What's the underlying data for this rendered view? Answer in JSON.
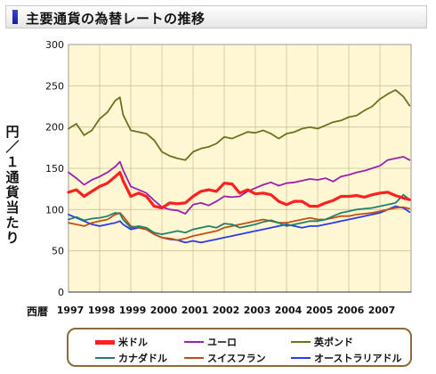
{
  "title": "主要通貨の為替レートの推移",
  "chart_data": {
    "type": "line",
    "ylabel": "円／１通貨当たり",
    "xlabel_prefix": "西暦",
    "ylim": [
      0,
      300
    ],
    "yticks": [
      "0",
      "50",
      "100",
      "150",
      "200",
      "250",
      "300"
    ],
    "xlim": [
      1997,
      2008
    ],
    "xticks": [
      "1997",
      "1998",
      "1999",
      "2000",
      "2001",
      "2002",
      "2003",
      "2004",
      "2005",
      "2006",
      "2007"
    ],
    "grid": true,
    "legend_position": "bottom",
    "series": [
      {
        "name": "米ドル",
        "color": "#ff2020",
        "width": 3.2,
        "x": [
          1997,
          1997.25,
          1997.5,
          1997.75,
          1998,
          1998.25,
          1998.5,
          1998.65,
          1998.75,
          1999,
          1999.25,
          1999.5,
          1999.75,
          2000,
          2000.25,
          2000.5,
          2000.75,
          2001,
          2001.25,
          2001.5,
          2001.75,
          2002,
          2002.25,
          2002.5,
          2002.75,
          2003,
          2003.25,
          2003.5,
          2003.75,
          2004,
          2004.25,
          2004.5,
          2004.75,
          2005,
          2005.25,
          2005.5,
          2005.75,
          2006,
          2006.25,
          2006.5,
          2006.75,
          2007,
          2007.25,
          2007.5,
          2007.75,
          2007.95
        ],
        "y": [
          121,
          124,
          116,
          122,
          128,
          132,
          140,
          145,
          135,
          116,
          120,
          116,
          104,
          102,
          108,
          107,
          108,
          116,
          122,
          124,
          122,
          132,
          131,
          120,
          124,
          119,
          120,
          118,
          110,
          106,
          110,
          110,
          104,
          104,
          108,
          111,
          116,
          116,
          117,
          115,
          118,
          120,
          121,
          117,
          114,
          112
        ]
      },
      {
        "name": "ユーロ",
        "color": "#9b20b0",
        "width": 1.8,
        "x": [
          1997,
          1997.25,
          1997.5,
          1997.75,
          1998,
          1998.25,
          1998.5,
          1998.65,
          1998.75,
          1999,
          1999.25,
          1999.5,
          1999.75,
          2000,
          2000.25,
          2000.5,
          2000.75,
          2001,
          2001.25,
          2001.5,
          2001.75,
          2002,
          2002.25,
          2002.5,
          2002.75,
          2003,
          2003.25,
          2003.5,
          2003.75,
          2004,
          2004.25,
          2004.5,
          2004.75,
          2005,
          2005.25,
          2005.5,
          2005.75,
          2006,
          2006.25,
          2006.5,
          2006.75,
          2007,
          2007.25,
          2007.5,
          2007.75,
          2007.95
        ],
        "y": [
          145,
          138,
          130,
          136,
          140,
          145,
          152,
          158,
          148,
          128,
          124,
          120,
          111,
          103,
          100,
          99,
          95,
          106,
          108,
          105,
          110,
          116,
          115,
          116,
          122,
          126,
          130,
          133,
          129,
          132,
          133,
          135,
          137,
          136,
          138,
          134,
          140,
          142,
          145,
          147,
          150,
          153,
          160,
          162,
          164,
          160
        ]
      },
      {
        "name": "英ポンド",
        "color": "#707020",
        "width": 1.8,
        "x": [
          1997,
          1997.25,
          1997.5,
          1997.75,
          1998,
          1998.25,
          1998.5,
          1998.65,
          1998.75,
          1999,
          1999.25,
          1999.5,
          1999.75,
          2000,
          2000.25,
          2000.5,
          2000.75,
          2001,
          2001.25,
          2001.5,
          2001.75,
          2002,
          2002.25,
          2002.5,
          2002.75,
          2003,
          2003.25,
          2003.5,
          2003.75,
          2004,
          2004.25,
          2004.5,
          2004.75,
          2005,
          2005.25,
          2005.5,
          2005.75,
          2006,
          2006.25,
          2006.5,
          2006.75,
          2007,
          2007.25,
          2007.5,
          2007.75,
          2007.95
        ],
        "y": [
          198,
          204,
          190,
          196,
          210,
          218,
          232,
          236,
          215,
          196,
          194,
          192,
          184,
          170,
          165,
          162,
          160,
          170,
          174,
          176,
          180,
          188,
          186,
          190,
          194,
          193,
          196,
          192,
          186,
          192,
          194,
          198,
          200,
          198,
          202,
          206,
          208,
          212,
          214,
          220,
          225,
          234,
          240,
          245,
          237,
          226
        ]
      },
      {
        "name": "カナダドル",
        "color": "#208070",
        "width": 1.8,
        "x": [
          1997,
          1997.25,
          1997.5,
          1997.75,
          1998,
          1998.25,
          1998.5,
          1998.65,
          1998.75,
          1999,
          1999.25,
          1999.5,
          1999.75,
          2000,
          2000.25,
          2000.5,
          2000.75,
          2001,
          2001.25,
          2001.5,
          2001.75,
          2002,
          2002.25,
          2002.5,
          2002.75,
          2003,
          2003.25,
          2003.5,
          2003.75,
          2004,
          2004.25,
          2004.5,
          2004.75,
          2005,
          2005.25,
          2005.5,
          2005.75,
          2006,
          2006.25,
          2006.5,
          2006.75,
          2007,
          2007.25,
          2007.5,
          2007.75,
          2007.95
        ],
        "y": [
          88,
          91,
          87,
          89,
          90,
          92,
          96,
          95,
          88,
          78,
          80,
          78,
          72,
          70,
          72,
          74,
          72,
          76,
          78,
          80,
          78,
          83,
          82,
          78,
          80,
          82,
          85,
          87,
          84,
          80,
          82,
          84,
          86,
          86,
          88,
          92,
          96,
          98,
          100,
          101,
          102,
          104,
          106,
          108,
          118,
          112
        ]
      },
      {
        "name": "スイスフラン",
        "color": "#c05010",
        "width": 1.8,
        "x": [
          1997,
          1997.25,
          1997.5,
          1997.75,
          1998,
          1998.25,
          1998.5,
          1998.65,
          1998.75,
          1999,
          1999.25,
          1999.5,
          1999.75,
          2000,
          2000.25,
          2000.5,
          2000.75,
          2001,
          2001.25,
          2001.5,
          2001.75,
          2002,
          2002.25,
          2002.5,
          2002.75,
          2003,
          2003.25,
          2003.5,
          2003.75,
          2004,
          2004.25,
          2004.5,
          2004.75,
          2005,
          2005.25,
          2005.5,
          2005.75,
          2006,
          2006.25,
          2006.5,
          2006.75,
          2007,
          2007.25,
          2007.5,
          2007.75,
          2007.95
        ],
        "y": [
          84,
          82,
          80,
          84,
          86,
          88,
          94,
          96,
          92,
          80,
          78,
          76,
          70,
          66,
          65,
          63,
          65,
          68,
          70,
          72,
          74,
          78,
          80,
          82,
          84,
          86,
          88,
          86,
          84,
          84,
          86,
          88,
          90,
          88,
          88,
          90,
          92,
          92,
          94,
          95,
          96,
          98,
          100,
          102,
          103,
          101
        ]
      },
      {
        "name": "オーストラリアドル",
        "color": "#2a3af0",
        "width": 1.8,
        "x": [
          1997,
          1997.25,
          1997.5,
          1997.75,
          1998,
          1998.25,
          1998.5,
          1998.65,
          1998.75,
          1999,
          1999.25,
          1999.5,
          1999.75,
          2000,
          2000.25,
          2000.5,
          2000.75,
          2001,
          2001.25,
          2001.5,
          2001.75,
          2002,
          2002.25,
          2002.5,
          2002.75,
          2003,
          2003.25,
          2003.5,
          2003.75,
          2004,
          2004.25,
          2004.5,
          2004.75,
          2005,
          2005.25,
          2005.5,
          2005.75,
          2006,
          2006.25,
          2006.5,
          2006.75,
          2007,
          2007.25,
          2007.5,
          2007.75,
          2007.95
        ],
        "y": [
          94,
          90,
          86,
          82,
          80,
          82,
          84,
          86,
          82,
          76,
          78,
          76,
          70,
          66,
          64,
          63,
          60,
          62,
          60,
          62,
          64,
          66,
          68,
          70,
          72,
          74,
          76,
          78,
          80,
          82,
          80,
          78,
          80,
          80,
          82,
          84,
          86,
          88,
          90,
          92,
          94,
          96,
          100,
          104,
          102,
          97
        ]
      }
    ]
  }
}
